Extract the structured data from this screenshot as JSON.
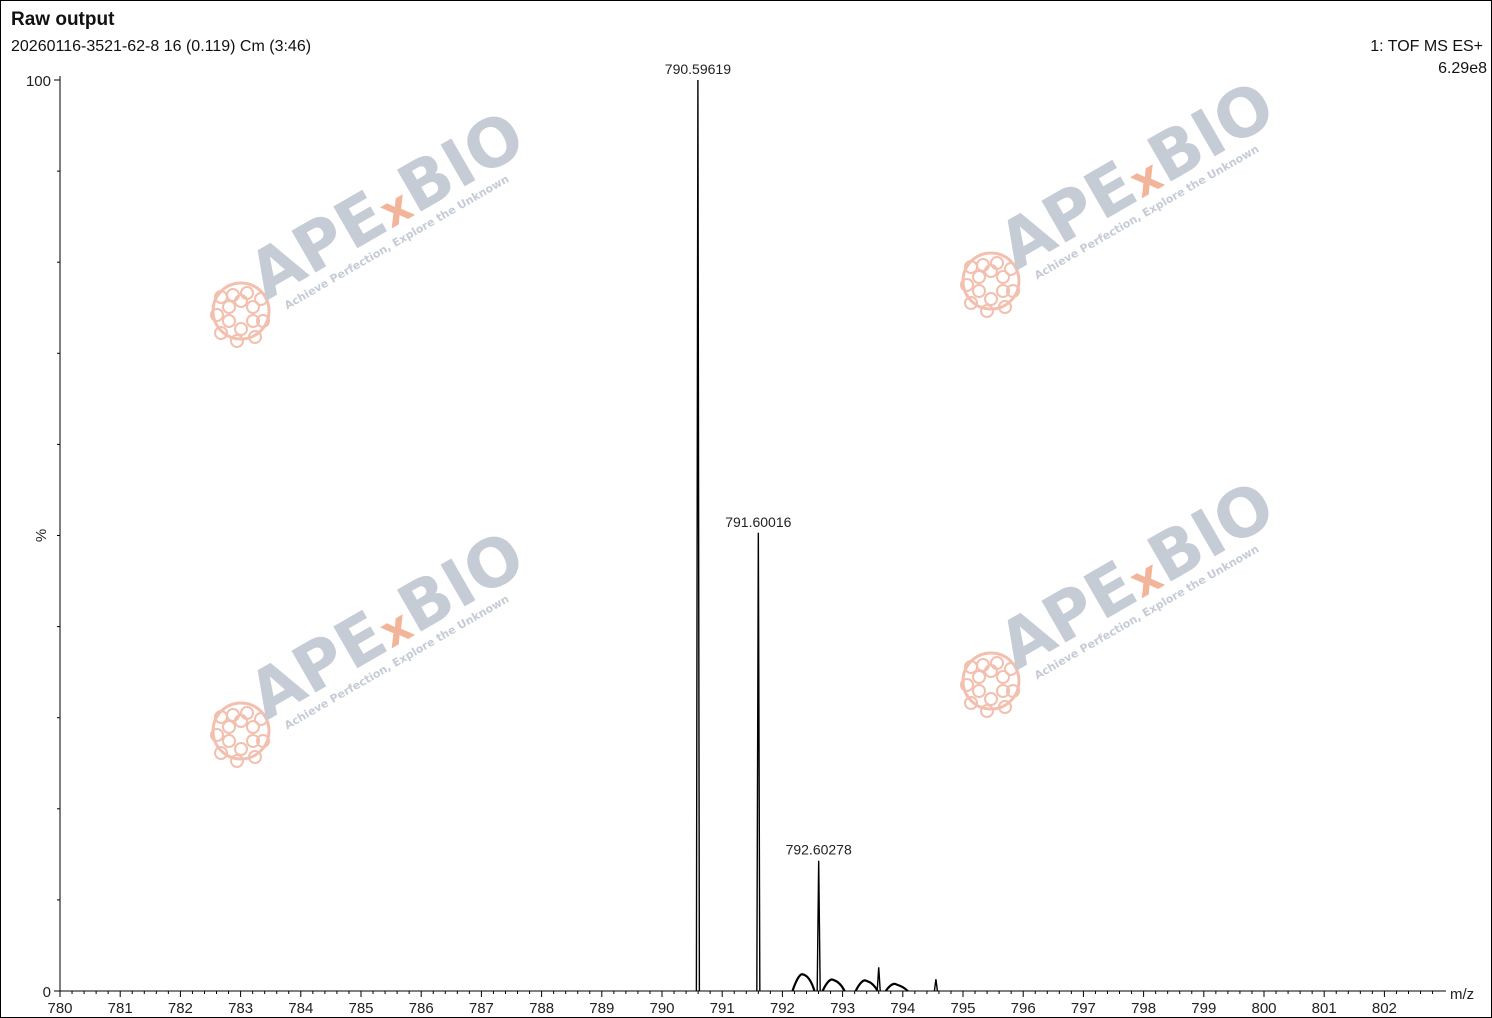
{
  "header": {
    "title": "Raw output",
    "subtitle": "20260116-3521-62-8 16 (0.119) Cm (3:46)",
    "ion_mode": "1: TOF MS ES+",
    "intensity_scale": "6.29e8"
  },
  "watermark": {
    "brand_prefix": "APE",
    "brand_x": "x",
    "brand_suffix": "BIO",
    "tagline": "Achieve Perfection, Explore the Unknown",
    "text_color": "#c5ccd6",
    "accent_color": "#f2b59a",
    "logo_color": "#f3bfae"
  },
  "chart_data": {
    "type": "line",
    "xlabel": "m/z",
    "ylabel": "%",
    "xlim": [
      780,
      803
    ],
    "ylim": [
      0,
      100
    ],
    "x_ticks": [
      780,
      781,
      782,
      783,
      784,
      785,
      786,
      787,
      788,
      789,
      790,
      791,
      792,
      793,
      794,
      795,
      796,
      797,
      798,
      799,
      800,
      801,
      802
    ],
    "y_tick_labels": [
      "0",
      "100"
    ],
    "line_color": "#000000",
    "peaks": [
      {
        "mz": 790.59619,
        "intensity": 100,
        "label": "790.59619"
      },
      {
        "mz": 791.60016,
        "intensity": 50.3,
        "label": "791.60016"
      },
      {
        "mz": 792.60278,
        "intensity": 14.3,
        "label": "792.60278"
      },
      {
        "mz": 793.6,
        "intensity": 2.6,
        "label": ""
      },
      {
        "mz": 794.55,
        "intensity": 1.3,
        "label": ""
      }
    ],
    "humps": [
      {
        "mz": 792.35,
        "intensity": 1.8
      },
      {
        "mz": 792.85,
        "intensity": 1.2
      },
      {
        "mz": 793.4,
        "intensity": 1.1
      },
      {
        "mz": 793.9,
        "intensity": 0.7
      }
    ]
  }
}
